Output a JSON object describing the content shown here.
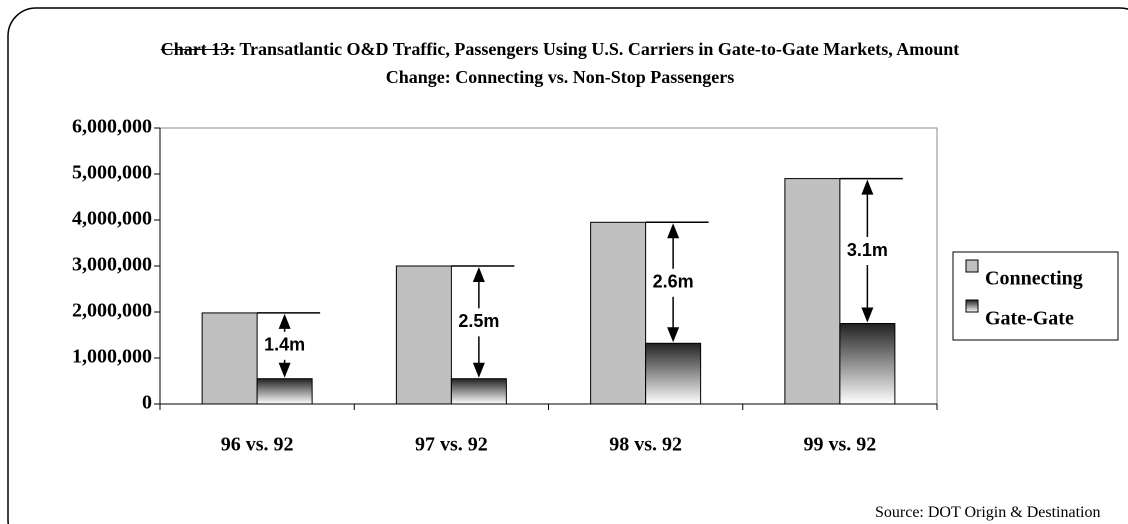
{
  "chart_data": {
    "type": "bar",
    "title_prefix": "Chart 13:",
    "title": "Transatlantic O&D Traffic, Passengers Using U.S. Carriers in Gate-to-Gate Markets, Amount Change: Connecting vs. Non-Stop Passengers",
    "categories": [
      "96 vs. 92",
      "97 vs. 92",
      "98 vs. 92",
      "99 vs. 92"
    ],
    "series": [
      {
        "name": "Connecting",
        "color": "#c0c0c0",
        "values": [
          1980000,
          3000000,
          3950000,
          4900000
        ]
      },
      {
        "name": "Gate-Gate",
        "color": "#222222",
        "values": [
          550000,
          550000,
          1320000,
          1750000
        ]
      }
    ],
    "annotations": [
      "1.4m",
      "2.5m",
      "2.6m",
      "3.1m"
    ],
    "ylim": [
      0,
      6000000
    ],
    "yticks": [
      0,
      {
        "value": 1000000,
        "label": "1,000,000"
      },
      {
        "value": 2000000,
        "label": "2,000,000"
      },
      {
        "value": 3000000,
        "label": "3,000,000"
      },
      {
        "value": 4000000,
        "label": "4,000,000"
      },
      {
        "value": 5000000,
        "label": "5,000,000"
      },
      {
        "value": 6000000,
        "label": "6,000,000"
      }
    ],
    "legend": "right",
    "source": "Source: DOT Origin & Destination"
  }
}
